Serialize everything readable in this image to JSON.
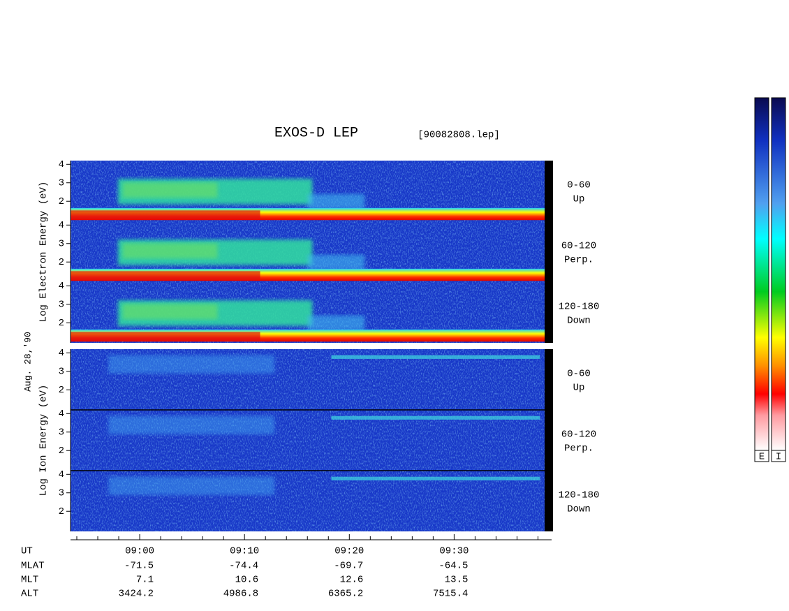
{
  "chart_data": {
    "type": "spectrogram",
    "title": "EXOS-D LEP",
    "subtitle": "[90082808.lep]",
    "date_label": "Aug. 28,'90",
    "xlim": [
      533.4,
      579.3
    ],
    "xticks": [
      {
        "value": 540,
        "label": "09:00"
      },
      {
        "value": 550,
        "label": "09:10"
      },
      {
        "value": 560,
        "label": "09:20"
      },
      {
        "value": 570,
        "label": "09:30"
      }
    ],
    "xminor_ticks": [
      534,
      536,
      538,
      542,
      544,
      546,
      548,
      552,
      554,
      556,
      558,
      562,
      564,
      566,
      568,
      572,
      574,
      576,
      578
    ],
    "x_label": "UT",
    "extra_rows": [
      {
        "label": "MLAT",
        "values": [
          -71.5,
          -74.4,
          -69.7,
          -64.5
        ]
      },
      {
        "label": "MLT",
        "values": [
          7.1,
          10.6,
          12.6,
          13.5
        ]
      },
      {
        "label": "ALT",
        "values": [
          3424.2,
          4986.8,
          6365.2,
          7515.4
        ]
      }
    ],
    "ylim": [
      0.95,
      4.2
    ],
    "yticks": [
      2,
      3,
      4
    ],
    "panels": [
      {
        "y_label": "Log Electron Energy (eV)",
        "channels": [
          {
            "angle": "0-60",
            "direction": "Up"
          },
          {
            "angle": "60-120",
            "direction": "Perp."
          },
          {
            "angle": "120-180",
            "direction": "Down"
          }
        ]
      },
      {
        "y_label": "Log Ion Energy (eV)",
        "channels": [
          {
            "angle": "0-60",
            "direction": "Up"
          },
          {
            "angle": "60-120",
            "direction": "Perp."
          },
          {
            "angle": "120-180",
            "direction": "Down"
          }
        ]
      }
    ],
    "colorbars": [
      "E",
      "I"
    ]
  }
}
